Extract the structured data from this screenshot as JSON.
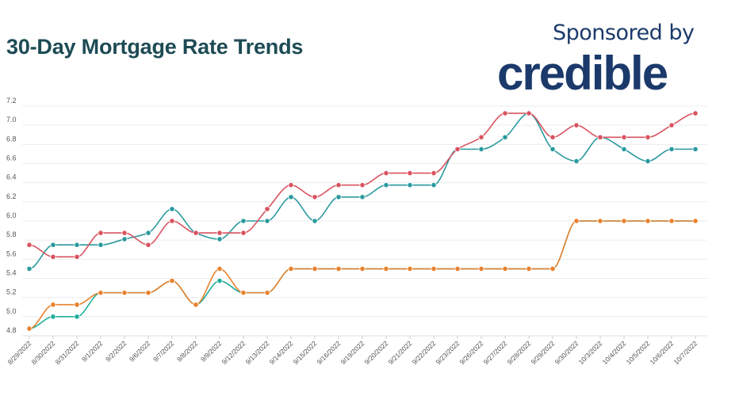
{
  "header": {
    "sponsor_text": "Sponsored by",
    "logo_text": "credible"
  },
  "chart_data": {
    "type": "line",
    "title": "30-Day Mortgage Rate Trends",
    "xlabel": "",
    "ylabel": "",
    "ylim": [
      4.8,
      7.2
    ],
    "yticks": [
      "4.8",
      "5.0",
      "5.2",
      "5.4",
      "5.6",
      "5.8",
      "6.0",
      "6.2",
      "6.4",
      "6.6",
      "6.8",
      "7.0",
      "7.2"
    ],
    "grid": true,
    "legend": "none",
    "categories": [
      "8/29/2022",
      "8/30/2022",
      "8/31/2022",
      "9/1/2022",
      "9/2/2022",
      "9/6/2022",
      "9/7/2022",
      "9/8/2022",
      "9/9/2022",
      "9/12/2022",
      "9/13/2022",
      "9/14/2022",
      "9/15/2022",
      "9/16/2022",
      "9/19/2022",
      "9/20/2022",
      "9/21/2022",
      "9/22/2022",
      "9/23/2022",
      "9/26/2022",
      "9/27/2022",
      "9/28/2022",
      "9/29/2022",
      "9/30/2022",
      "10/3/2022",
      "10/4/2022",
      "10/5/2022",
      "10/6/2022",
      "10/7/2022"
    ],
    "series": [
      {
        "color": "#1fae9a",
        "values": [
          4.875,
          5.0,
          5.0,
          5.25,
          5.25,
          5.25,
          5.375,
          5.125,
          5.375,
          5.25,
          5.25,
          5.5,
          5.5,
          5.5,
          5.5,
          5.5,
          5.5,
          5.5,
          5.5,
          5.5,
          5.5,
          5.5,
          5.5,
          6.0,
          6.0,
          6.0,
          6.0,
          6.0,
          6.0
        ]
      },
      {
        "color": "#e8822e",
        "values": [
          4.875,
          5.125,
          5.125,
          5.25,
          5.25,
          5.25,
          5.375,
          5.125,
          5.5,
          5.25,
          5.25,
          5.5,
          5.5,
          5.5,
          5.5,
          5.5,
          5.5,
          5.5,
          5.5,
          5.5,
          5.5,
          5.5,
          5.5,
          6.0,
          6.0,
          6.0,
          6.0,
          6.0,
          6.0
        ]
      },
      {
        "color": "#2a9a9f",
        "values": [
          5.5,
          5.75,
          5.75,
          5.75,
          5.81,
          5.875,
          6.125,
          5.875,
          5.81,
          6.0,
          6.0,
          6.25,
          6.0,
          6.25,
          6.25,
          6.375,
          6.375,
          6.375,
          6.75,
          6.75,
          6.875,
          7.125,
          6.75,
          6.625,
          6.875,
          6.75,
          6.625,
          6.75,
          6.75
        ]
      },
      {
        "color": "#d9535f",
        "values": [
          5.75,
          5.625,
          5.625,
          5.875,
          5.875,
          5.75,
          6.0,
          5.875,
          5.875,
          5.875,
          6.125,
          6.375,
          6.25,
          6.375,
          6.375,
          6.5,
          6.5,
          6.5,
          6.75,
          6.875,
          7.125,
          7.125,
          6.875,
          7.0,
          6.875,
          6.875,
          6.875,
          7.0,
          7.125
        ]
      }
    ]
  }
}
